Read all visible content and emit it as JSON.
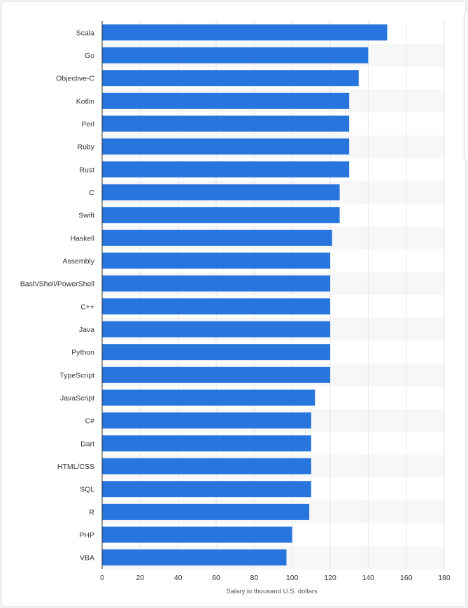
{
  "chart_data": {
    "type": "bar",
    "orientation": "horizontal",
    "categories": [
      "Scala",
      "Go",
      "Objective-C",
      "Kotlin",
      "Perl",
      "Ruby",
      "Rust",
      "C",
      "Swift",
      "Haskell",
      "Assembly",
      "Bash/Shell/PowerShell",
      "C++",
      "Java",
      "Python",
      "TypeScript",
      "JavaScript",
      "C#",
      "Dart",
      "HTML/CSS",
      "SQL",
      "R",
      "PHP",
      "VBA"
    ],
    "series": [
      {
        "values": [
          150,
          140,
          135,
          130,
          130,
          130,
          130,
          125,
          125,
          121,
          120,
          120,
          120,
          120,
          120,
          120,
          112,
          110,
          110,
          110,
          110,
          109,
          100,
          97
        ]
      }
    ],
    "xlabel": "Salary in thousand U.S. dollars",
    "ylabel": "",
    "xlim": [
      0,
      180
    ],
    "xticks": [
      "0",
      "20",
      "40",
      "60",
      "80",
      "100",
      "120",
      "140",
      "160",
      "180"
    ],
    "grid": true,
    "colors": {
      "bar": "#2876dd",
      "band": "#f7f7f7",
      "grid": "#e6e6e6",
      "axis": "#333333"
    }
  }
}
